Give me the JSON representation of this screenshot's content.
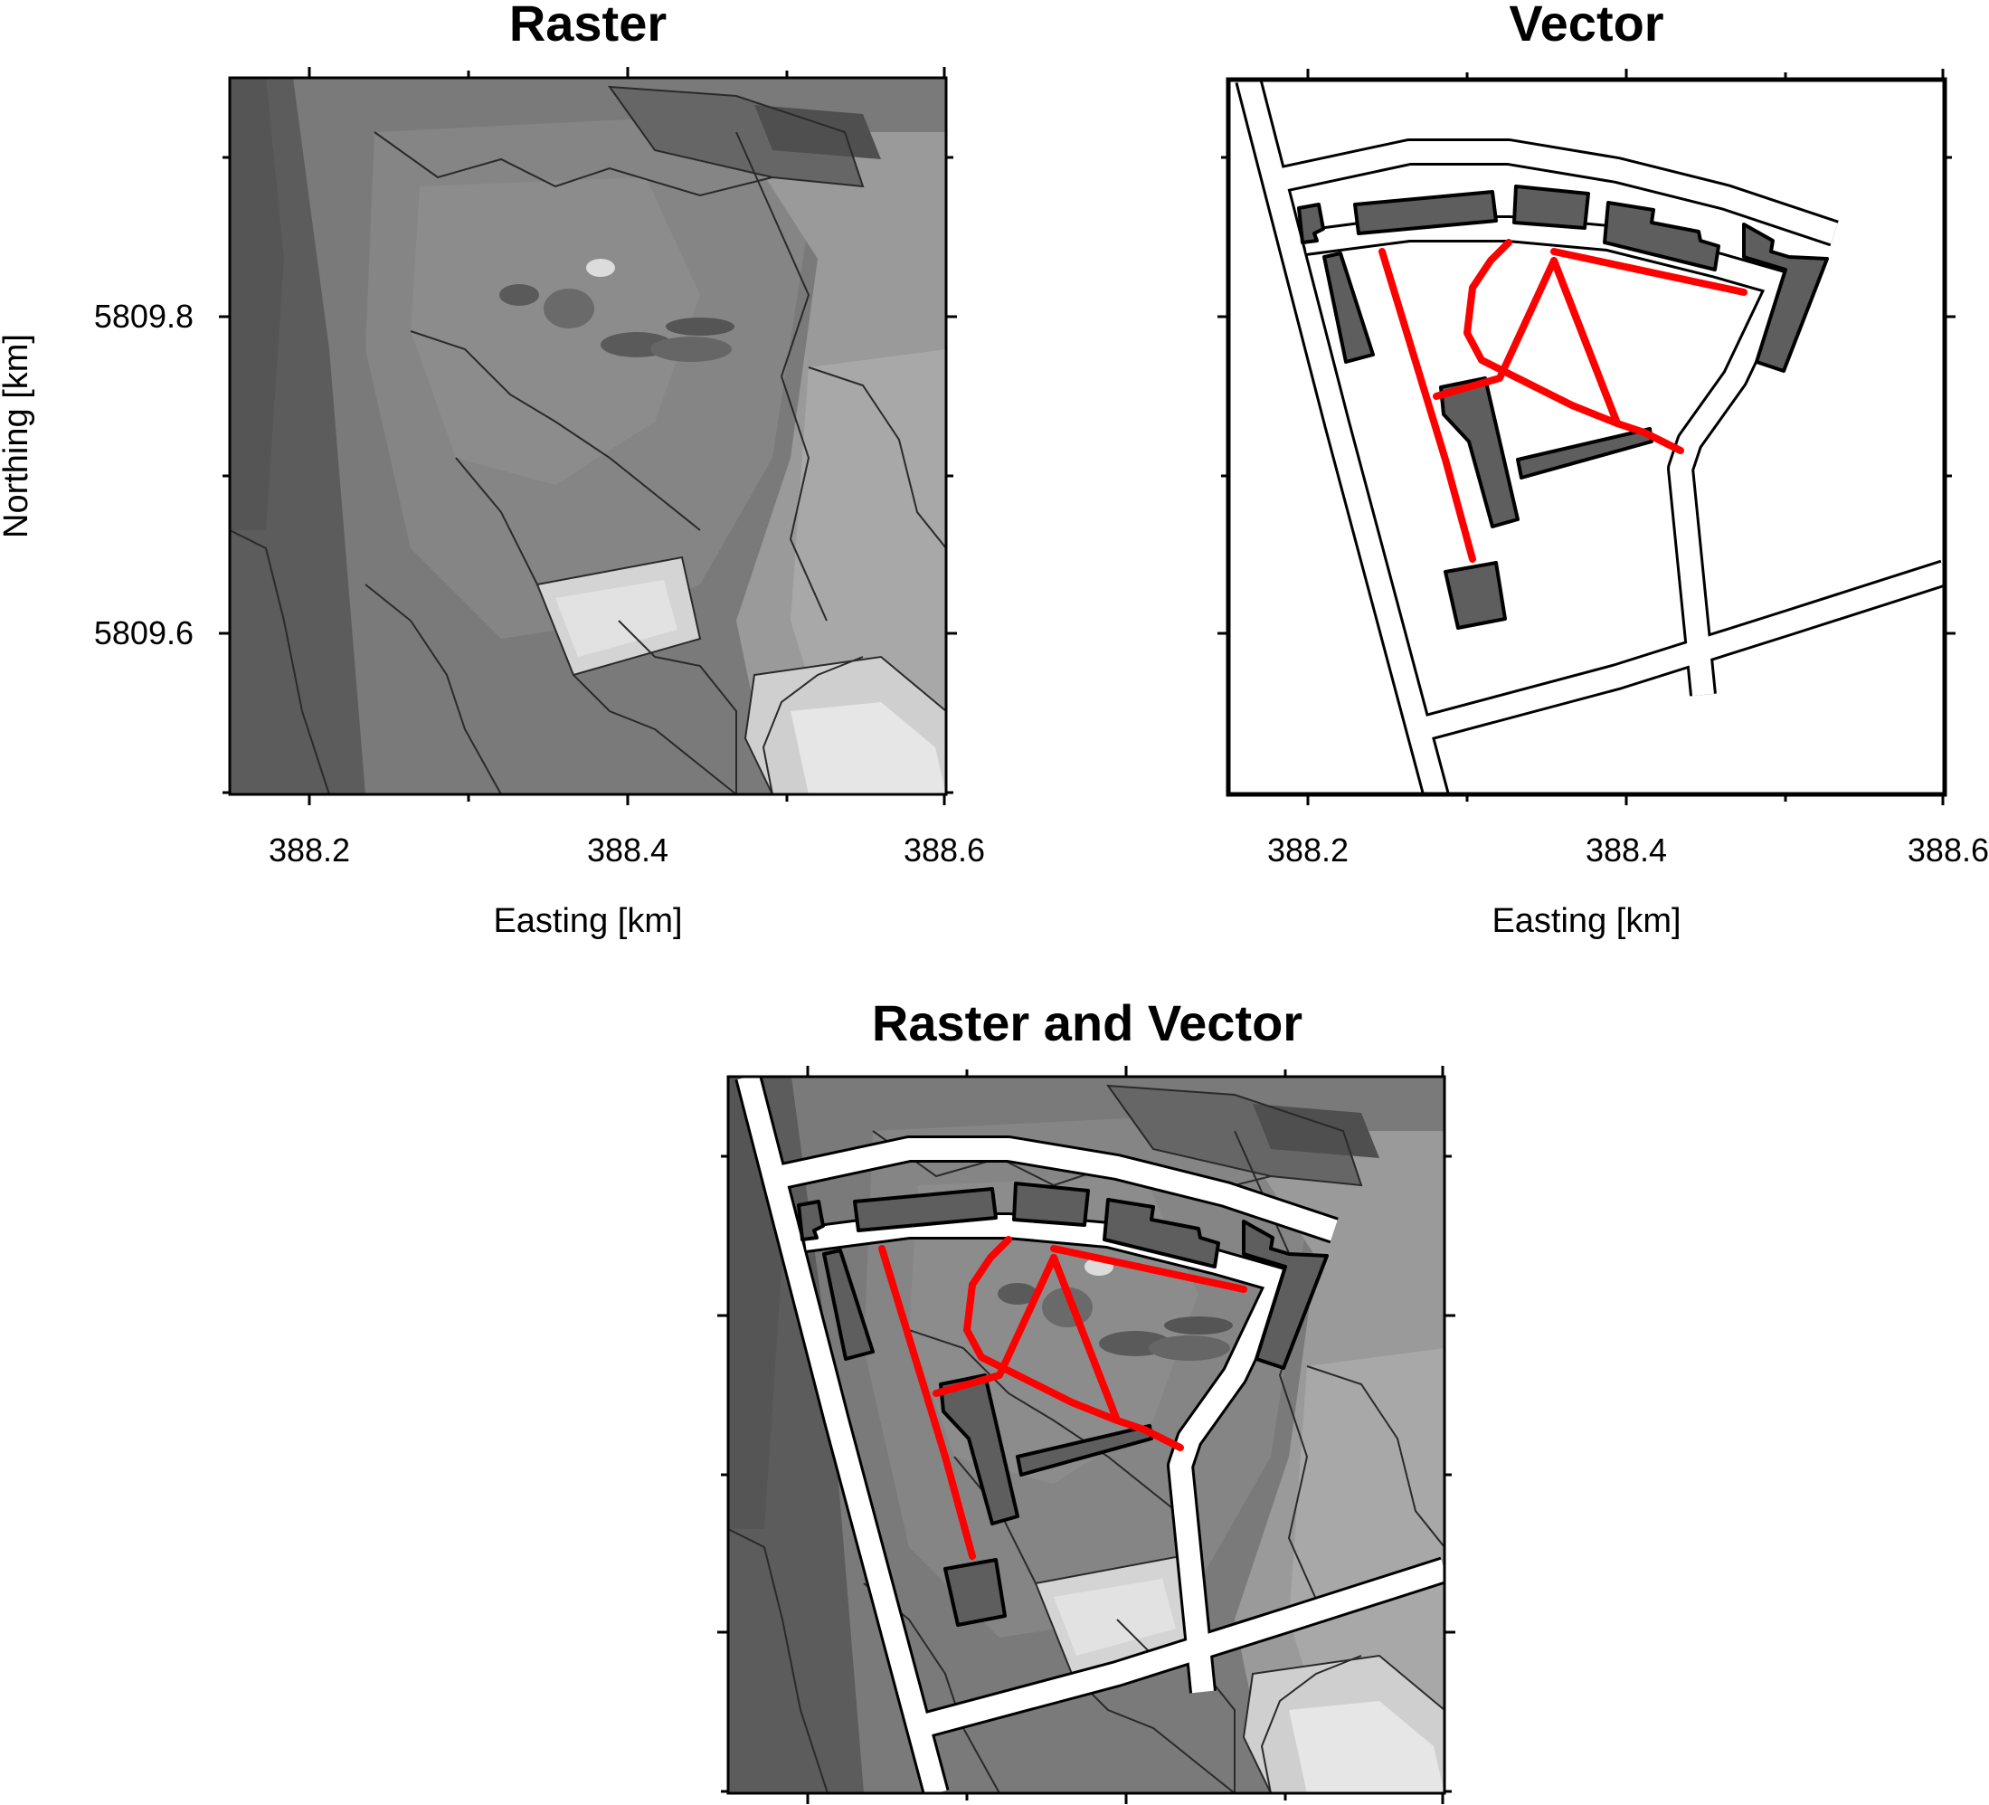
{
  "panels": {
    "raster": {
      "title": "Raster"
    },
    "vector": {
      "title": "Vector"
    },
    "combined": {
      "title": "Raster and Vector"
    }
  },
  "axes": {
    "x_label": "Easting [km]",
    "y_label": "Northing [km]",
    "x_ticks": [
      "388.2",
      "388.4",
      "388.6"
    ],
    "y_ticks": [
      "5809.8",
      "5809.6"
    ],
    "x_range": [
      388.15,
      388.6
    ],
    "y_range": [
      5809.5,
      5809.95
    ]
  },
  "colors": {
    "raster_dark": "#5a5a5a",
    "raster_mid": "#7a7a7a",
    "raster_light": "#cfcfcf",
    "building": "#5e5e5e",
    "footpath": "#ff0000",
    "road": "#ffffff"
  },
  "legend_layers": [
    "raster-dem",
    "roads",
    "buildings",
    "footpaths"
  ]
}
